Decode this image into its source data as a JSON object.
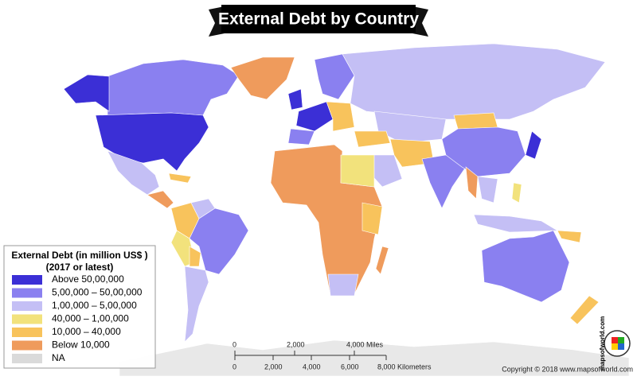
{
  "title": "External Debt by Country",
  "legend": {
    "title": "External Debt (in million US$ )",
    "subtitle": "(2017 or latest)",
    "items": [
      {
        "label": "Above 50,00,000",
        "color": "#3b2fd6"
      },
      {
        "label": "5,00,000 – 50,00,000",
        "color": "#8a80f0"
      },
      {
        "label": "1,00,000 – 5,00,000",
        "color": "#c4bff5"
      },
      {
        "label": "40,000 – 1,00,000",
        "color": "#f2e27c"
      },
      {
        "label": "10,000 – 40,000",
        "color": "#f8c35c"
      },
      {
        "label": "Below 10,000",
        "color": "#ef9b5c"
      },
      {
        "label": "NA",
        "color": "#dadada"
      }
    ]
  },
  "scale": {
    "miles": [
      "0",
      "2,000",
      "4,000 Miles"
    ],
    "kilometers": [
      "0",
      "2,000",
      "4,000",
      "6,000",
      "8,000 Kilometers"
    ]
  },
  "copyright": "Copyright © 2018 www.mapsofworld.com",
  "logo": "mapsofworld.com"
}
